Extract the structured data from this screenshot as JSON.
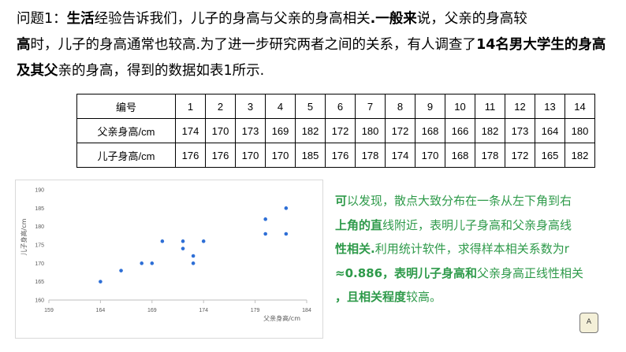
{
  "problem": {
    "label": "问题1",
    "colon": "：",
    "p1": "生活",
    "p2": "经验告诉我们，儿子的身高与父亲的身高相关",
    "p3": ".一般来",
    "p4": "说，父亲的身高较",
    "p5": "高",
    "p6": "时，儿子的身高通常也较高.为了进一步研究两者之间的关系，有人调查了",
    "p7": "14名男大学生的身高及其父",
    "p8": "亲的身高，得到的数据如表1所示."
  },
  "table": {
    "row_headers": [
      "编号",
      "父亲身高/cm",
      "儿子身高/cm"
    ],
    "ids": [
      "1",
      "2",
      "3",
      "4",
      "5",
      "6",
      "7",
      "8",
      "9",
      "10",
      "11",
      "12",
      "13",
      "14"
    ],
    "father": [
      "174",
      "170",
      "173",
      "169",
      "182",
      "172",
      "180",
      "172",
      "168",
      "166",
      "182",
      "173",
      "164",
      "180"
    ],
    "son": [
      "176",
      "176",
      "170",
      "170",
      "185",
      "176",
      "178",
      "174",
      "170",
      "168",
      "178",
      "172",
      "165",
      "182"
    ]
  },
  "chart_data": {
    "type": "scatter",
    "x": [
      174,
      170,
      173,
      169,
      182,
      172,
      180,
      172,
      168,
      166,
      182,
      173,
      164,
      180
    ],
    "y": [
      176,
      176,
      170,
      170,
      185,
      176,
      178,
      174,
      170,
      168,
      178,
      172,
      165,
      182
    ],
    "xlabel": "父亲身高/cm",
    "ylabel": "儿子身高/cm",
    "xlim": [
      159,
      184
    ],
    "ylim": [
      160,
      190
    ],
    "xticks": [
      "159",
      "164",
      "169",
      "174",
      "179",
      "184"
    ],
    "yticks": [
      "160",
      "165",
      "170",
      "175",
      "180",
      "185",
      "190"
    ],
    "point_color": "#2e6fd6",
    "grid": false
  },
  "note": {
    "p1": "可",
    "p2": "以发现，散点大致分布在一条从左下角到右",
    "p3": "上角的直",
    "p4": "线附近，表明儿子身高和父亲身高线",
    "p5": "性相关.",
    "p6": "利用统计软件，求得样本相关系数为r",
    "p7": "≈0.886，表明儿子身高和",
    "p8": "父",
    "p9": "亲身高正线性相关",
    "p10": "，且相关程度",
    "p11": "较高。"
  },
  "colors": {
    "note_text": "#2e9a4a",
    "point": "#2e6fd6"
  },
  "corner_icon": {
    "name": "notebook-icon",
    "glyph": "A"
  }
}
